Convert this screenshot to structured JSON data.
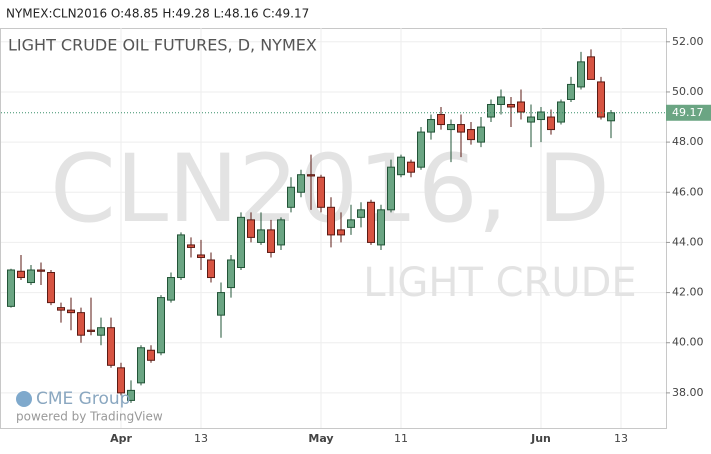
{
  "header": "NYMEX:CLN2016 O:48.85 H:49.28 L:48.16 C:49.17",
  "chart_data": {
    "type": "candlestick",
    "title": "LIGHT CRUDE OIL FUTURES, D, NYMEX",
    "watermark": [
      "CLN2016, D",
      "LIGHT CRUDE"
    ],
    "logo": "CME Group",
    "credit": "powered by TradingView",
    "up_color": "#6ba583",
    "up_border": "#225437",
    "down_color": "#d75442",
    "down_border": "#5b1a13",
    "last_price": 49.17,
    "ylim": [
      36.6,
      52.55
    ],
    "yticks": [
      {
        "value": 38,
        "label": "38.00"
      },
      {
        "value": 40,
        "label": "40.00"
      },
      {
        "value": 42,
        "label": "42.00"
      },
      {
        "value": 44,
        "label": "44.00"
      },
      {
        "value": 46,
        "label": "46.00"
      },
      {
        "value": 48,
        "label": "48.00"
      },
      {
        "value": 50,
        "label": "50.00"
      },
      {
        "value": 52,
        "label": "52.00"
      }
    ],
    "categories": [
      null,
      null,
      null,
      null,
      null,
      null,
      null,
      null,
      null,
      null,
      null,
      "Apr",
      null,
      null,
      null,
      null,
      null,
      null,
      null,
      "13",
      null,
      null,
      null,
      null,
      null,
      null,
      null,
      null,
      null,
      null,
      null,
      "May",
      null,
      null,
      null,
      null,
      null,
      null,
      null,
      "11",
      null,
      null,
      null,
      null,
      null,
      null,
      null,
      null,
      null,
      null,
      null,
      null,
      null,
      "Jun",
      null,
      null,
      null,
      null,
      null,
      null,
      null,
      "13"
    ],
    "open": [
      41.45,
      42.85,
      42.4,
      42.9,
      42.8,
      41.4,
      41.3,
      41.2,
      40.5,
      40.3,
      40.6,
      39.0,
      37.7,
      38.4,
      39.7,
      39.6,
      41.7,
      42.6,
      43.9,
      43.5,
      43.3,
      41.1,
      42.2,
      43.0,
      44.9,
      44.0,
      44.5,
      43.9,
      45.4,
      46.0,
      46.7,
      46.6,
      45.4,
      44.5,
      44.6,
      45.0,
      45.6,
      43.9,
      45.3,
      46.7,
      47.2,
      47.0,
      48.4,
      49.1,
      48.5,
      48.7,
      48.5,
      48.0,
      49.0,
      49.5,
      49.5,
      49.6,
      48.8,
      48.9,
      49.0,
      48.8,
      49.7,
      50.2,
      51.4,
      50.4,
      48.85,
      null
    ],
    "high": [
      42.95,
      43.5,
      43.1,
      43.2,
      42.9,
      41.6,
      41.8,
      41.4,
      41.8,
      41.0,
      41.0,
      39.2,
      38.5,
      39.9,
      39.9,
      41.9,
      42.8,
      44.4,
      44.2,
      44.1,
      43.6,
      42.4,
      43.5,
      45.2,
      45.2,
      45.2,
      44.9,
      45.0,
      46.6,
      46.9,
      47.5,
      46.7,
      45.8,
      45.2,
      45.5,
      45.6,
      45.7,
      45.5,
      47.3,
      47.5,
      47.3,
      48.6,
      49.1,
      49.4,
      48.9,
      49.1,
      48.8,
      49.0,
      49.7,
      50.1,
      49.8,
      50.1,
      49.5,
      49.4,
      49.3,
      49.7,
      50.6,
      51.6,
      51.7,
      50.6,
      49.28,
      null
    ],
    "low": [
      41.4,
      42.5,
      42.3,
      42.3,
      41.5,
      40.8,
      40.5,
      40.0,
      40.3,
      39.9,
      39.0,
      37.9,
      37.6,
      38.3,
      39.2,
      39.5,
      41.6,
      42.5,
      43.4,
      42.9,
      42.4,
      40.2,
      41.8,
      42.9,
      44.0,
      43.9,
      43.4,
      43.7,
      45.2,
      45.8,
      45.3,
      45.2,
      43.8,
      44.0,
      44.3,
      44.6,
      43.9,
      43.7,
      45.2,
      46.6,
      46.6,
      46.9,
      48.1,
      48.5,
      47.2,
      47.4,
      47.9,
      47.8,
      48.8,
      49.1,
      48.6,
      48.9,
      47.8,
      48.0,
      48.3,
      48.7,
      49.6,
      50.1,
      50.5,
      48.9,
      48.16,
      null
    ],
    "close": [
      42.9,
      42.6,
      42.9,
      42.85,
      41.6,
      41.3,
      41.2,
      40.3,
      40.45,
      40.6,
      39.1,
      38.0,
      38.1,
      39.8,
      39.3,
      41.8,
      42.6,
      44.3,
      43.8,
      43.4,
      42.6,
      42.0,
      43.3,
      45.0,
      44.2,
      44.5,
      43.6,
      44.9,
      46.2,
      46.7,
      46.65,
      45.4,
      44.3,
      44.3,
      44.9,
      45.3,
      44.0,
      45.3,
      47.0,
      47.4,
      46.8,
      48.4,
      48.9,
      48.7,
      48.7,
      48.4,
      48.1,
      48.6,
      49.5,
      49.8,
      49.4,
      49.2,
      49.0,
      49.2,
      48.5,
      49.6,
      50.3,
      51.2,
      50.5,
      49.0,
      49.17,
      null
    ]
  }
}
